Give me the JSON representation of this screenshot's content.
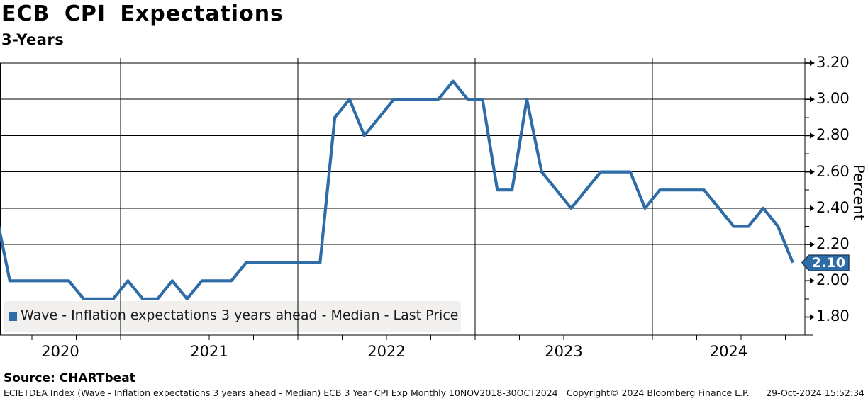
{
  "header": {
    "title": "ECB CPI Expectations",
    "subtitle": "3-Years"
  },
  "chart_data": {
    "type": "line",
    "title": "ECB CPI Expectations",
    "subtitle": "3-Years",
    "ylabel": "Percent",
    "legend": "Wave - Inflation expectations 3 years ahead - Median - Last Price",
    "line_color": "#2e6ca8",
    "grid_color": "#000000",
    "legend_bg_color": "#f1f0ee",
    "ylim": [
      1.7,
      3.27
    ],
    "y_tick_labels": [
      "3.20",
      "3.00",
      "2.80",
      "2.60",
      "2.40",
      "2.20",
      "2.00",
      "1.80"
    ],
    "y_minor_ticks": [
      1.9,
      2.1,
      2.3,
      2.5,
      2.7,
      2.9,
      3.1
    ],
    "x_tick_labels": [
      "2020",
      "2021",
      "2022",
      "2023",
      "2024"
    ],
    "grid": true,
    "legend_position": "bottom-left",
    "last_price": {
      "label": "2.10",
      "value": 2.1,
      "color": "#2e6ca8"
    },
    "points": [
      {
        "date": "2020-04",
        "value": 2.4
      },
      {
        "date": "2020-05",
        "value": 2.0
      },
      {
        "date": "2020-06",
        "value": 2.0
      },
      {
        "date": "2020-07",
        "value": 2.0
      },
      {
        "date": "2020-08",
        "value": 2.0
      },
      {
        "date": "2020-09",
        "value": 2.0
      },
      {
        "date": "2020-10",
        "value": 1.9
      },
      {
        "date": "2020-11",
        "value": 1.9
      },
      {
        "date": "2020-12",
        "value": 1.9
      },
      {
        "date": "2021-01",
        "value": 2.0
      },
      {
        "date": "2021-02",
        "value": 1.9
      },
      {
        "date": "2021-03",
        "value": 1.9
      },
      {
        "date": "2021-04",
        "value": 2.0
      },
      {
        "date": "2021-05",
        "value": 1.9
      },
      {
        "date": "2021-06",
        "value": 2.0
      },
      {
        "date": "2021-07",
        "value": 2.0
      },
      {
        "date": "2021-08",
        "value": 2.0
      },
      {
        "date": "2021-09",
        "value": 2.1
      },
      {
        "date": "2021-10",
        "value": 2.1
      },
      {
        "date": "2021-11",
        "value": 2.1
      },
      {
        "date": "2021-12",
        "value": 2.1
      },
      {
        "date": "2022-01",
        "value": 2.1
      },
      {
        "date": "2022-02",
        "value": 2.1
      },
      {
        "date": "2022-03",
        "value": 2.9
      },
      {
        "date": "2022-04",
        "value": 3.0
      },
      {
        "date": "2022-05",
        "value": 2.8
      },
      {
        "date": "2022-06",
        "value": 2.9
      },
      {
        "date": "2022-07",
        "value": 3.0
      },
      {
        "date": "2022-08",
        "value": 3.0
      },
      {
        "date": "2022-09",
        "value": 3.0
      },
      {
        "date": "2022-10",
        "value": 3.0
      },
      {
        "date": "2022-11",
        "value": 3.1
      },
      {
        "date": "2022-12",
        "value": 3.0
      },
      {
        "date": "2023-01",
        "value": 3.0
      },
      {
        "date": "2023-02",
        "value": 2.5
      },
      {
        "date": "2023-03",
        "value": 2.5
      },
      {
        "date": "2023-04",
        "value": 3.0
      },
      {
        "date": "2023-05",
        "value": 2.6
      },
      {
        "date": "2023-06",
        "value": 2.5
      },
      {
        "date": "2023-07",
        "value": 2.4
      },
      {
        "date": "2023-08",
        "value": 2.5
      },
      {
        "date": "2023-09",
        "value": 2.6
      },
      {
        "date": "2023-10",
        "value": 2.6
      },
      {
        "date": "2023-11",
        "value": 2.6
      },
      {
        "date": "2023-12",
        "value": 2.4
      },
      {
        "date": "2024-01",
        "value": 2.5
      },
      {
        "date": "2024-02",
        "value": 2.5
      },
      {
        "date": "2024-03",
        "value": 2.5
      },
      {
        "date": "2024-04",
        "value": 2.5
      },
      {
        "date": "2024-05",
        "value": 2.4
      },
      {
        "date": "2024-06",
        "value": 2.3
      },
      {
        "date": "2024-07",
        "value": 2.3
      },
      {
        "date": "2024-08",
        "value": 2.4
      },
      {
        "date": "2024-09",
        "value": 2.3
      },
      {
        "date": "2024-10",
        "value": 2.1
      }
    ]
  },
  "footer": {
    "source": "Source: CHARTbeat",
    "description": "ECIETDEA Index (Wave - Inflation expectations 3 years ahead - Median) ECB 3 Year CPI Exp  Monthly 10NOV2018-30OCT2024",
    "copyright": "Copyright© 2024 Bloomberg Finance L.P.",
    "datetime": "29-Oct-2024 15:52:34"
  }
}
